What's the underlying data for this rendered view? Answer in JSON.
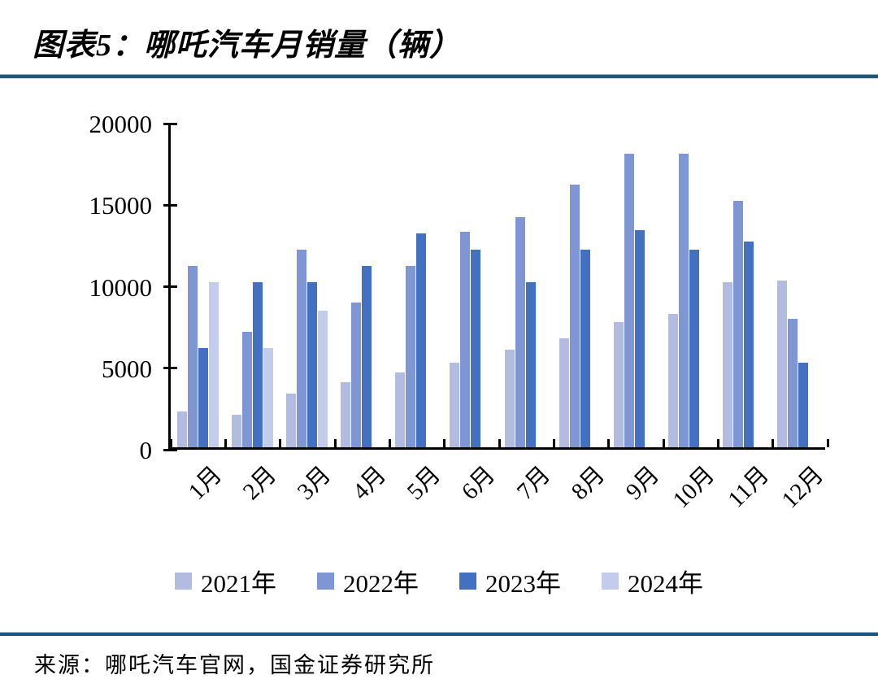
{
  "header": {
    "title": "图表5：哪吒汽车月销量（辆）"
  },
  "footer": {
    "source": "来源：哪吒汽车官网，国金证券研究所"
  },
  "colors": {
    "rule": "#20587b",
    "axis": "#000000",
    "series_2021": "#b2bce1",
    "series_2022": "#7e96d3",
    "series_2023": "#4470c2",
    "series_2024": "#c3cdeb"
  },
  "chart_data": {
    "type": "bar",
    "title": "哪吒汽车月销量（辆）",
    "xlabel": "",
    "ylabel": "",
    "ylim": [
      0,
      20000
    ],
    "yticks": [
      0,
      5000,
      10000,
      15000,
      20000
    ],
    "grid": false,
    "legend_position": "bottom",
    "categories": [
      "1月",
      "2月",
      "3月",
      "4月",
      "5月",
      "6月",
      "7月",
      "8月",
      "9月",
      "10月",
      "11月",
      "12月"
    ],
    "series": [
      {
        "name": "2021年",
        "color": "#b2bce1",
        "values": [
          2200,
          2000,
          3300,
          4000,
          4600,
          5200,
          6000,
          6700,
          7700,
          8200,
          10100,
          10200
        ]
      },
      {
        "name": "2022年",
        "color": "#7e96d3",
        "values": [
          11100,
          7100,
          12100,
          8900,
          11100,
          13200,
          14100,
          16100,
          18000,
          18000,
          15100,
          7900
        ]
      },
      {
        "name": "2023年",
        "color": "#4470c2",
        "values": [
          6100,
          10100,
          10100,
          11100,
          13100,
          12100,
          10100,
          12100,
          13300,
          12100,
          12600,
          5200
        ]
      },
      {
        "name": "2024年",
        "color": "#c3cdeb",
        "values": [
          10100,
          6100,
          8400,
          null,
          null,
          null,
          null,
          null,
          null,
          null,
          null,
          null
        ]
      }
    ]
  }
}
